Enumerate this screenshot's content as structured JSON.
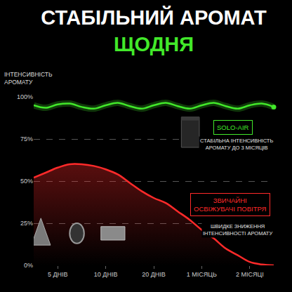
{
  "chart_data": {
    "type": "line",
    "title": "СТАБІЛЬНИЙ АРОМАТ",
    "subtitle": "ЩОДНЯ",
    "y_label": "ІНТЕНСИВНІСТЬ АРОМАТУ",
    "categories": [
      null,
      null,
      "5 ДНІВ",
      null,
      null,
      null,
      "10 ДНІВ",
      null,
      null,
      null,
      "20 ДНІВ",
      null,
      null,
      null,
      "1 МІСЯЦЬ",
      null,
      null,
      null,
      "2 МІСЯЦІ",
      null,
      null
    ],
    "series": [
      {
        "name": "SOLO-AIR",
        "color": "#42e82a",
        "marker": "end",
        "values": [
          95,
          93.5,
          95.5,
          96,
          94,
          93,
          95,
          96.5,
          94.5,
          93,
          95,
          96.5,
          94.5,
          93,
          95,
          96.5,
          94.5,
          93,
          95,
          96,
          94
        ]
      },
      {
        "name": "ЗВИЧАЙНІ ОСВІЖУВАЧІ ПОВІТРЯ",
        "color": "#ff2a2a",
        "values": [
          52,
          55,
          58,
          60,
          60,
          59,
          57,
          54,
          49,
          44,
          40,
          37,
          32,
          27,
          21,
          16,
          10,
          6,
          2,
          0.5,
          0
        ]
      }
    ],
    "annotations": [
      "СТАБІЛЬНА ІНТЕНСИВНІСТЬ АРОМАТУ ДО 3 МІСЯЦІВ",
      "ШВИДКЕ ЗНИЖЕННЯ ІНТЕНСИВНОСТІ АРОМАТУ"
    ],
    "ylim": [
      0,
      100
    ],
    "yticks": [
      {
        "value": 0,
        "label": "0%"
      },
      {
        "value": 25,
        "label": "25%"
      },
      {
        "value": 50,
        "label": "50%"
      },
      {
        "value": 75,
        "label": "75%"
      },
      {
        "value": 100,
        "label": "100%"
      }
    ],
    "grid": true
  }
}
